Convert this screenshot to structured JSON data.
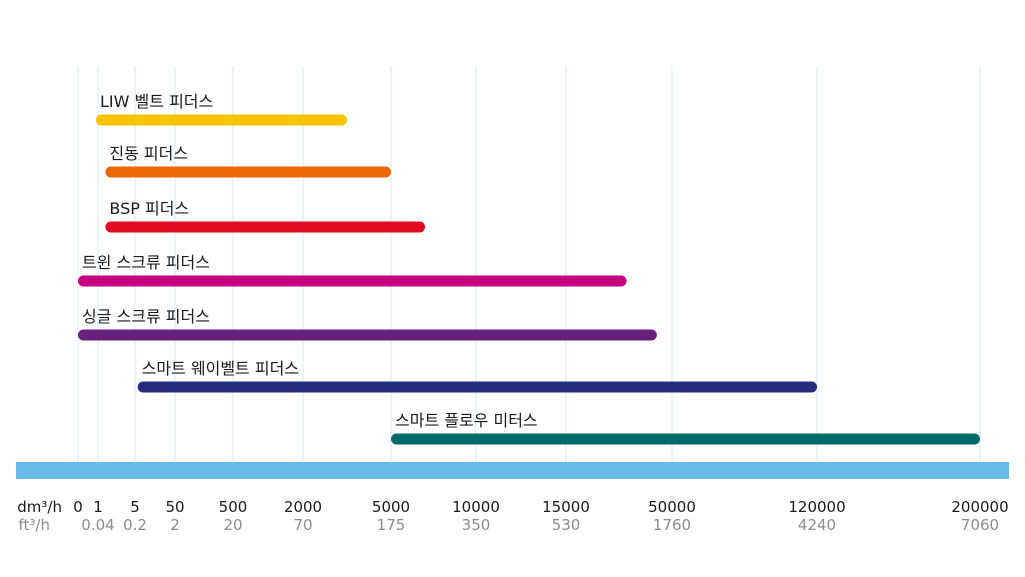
{
  "chart_data": {
    "type": "bar",
    "orientation": "horizontal-range",
    "title": "",
    "grid": true,
    "axis": {
      "scale": "categorical-nonlinear",
      "primary_unit": "dm³/h",
      "secondary_unit": "ft³/h",
      "ticks": [
        {
          "primary": "0",
          "secondary": "",
          "value": 0
        },
        {
          "primary": "1",
          "secondary": "0.04",
          "value": 1
        },
        {
          "primary": "5",
          "secondary": "0.2",
          "value": 5
        },
        {
          "primary": "50",
          "secondary": "2",
          "value": 50
        },
        {
          "primary": "500",
          "secondary": "20",
          "value": 500
        },
        {
          "primary": "2000",
          "secondary": "70",
          "value": 2000
        },
        {
          "primary": "5000",
          "secondary": "175",
          "value": 5000
        },
        {
          "primary": "10000",
          "secondary": "350",
          "value": 10000
        },
        {
          "primary": "15000",
          "secondary": "530",
          "value": 15000
        },
        {
          "primary": "50000",
          "secondary": "1760",
          "value": 50000
        },
        {
          "primary": "120000",
          "secondary": "4240",
          "value": 120000
        },
        {
          "primary": "200000",
          "secondary": "7060",
          "value": 200000
        }
      ]
    },
    "series": [
      {
        "name": "LIW 벨트 피더스",
        "start": 0.9,
        "end": 3500,
        "color": "#f8c300"
      },
      {
        "name": "진동 피더스",
        "start": 1.8,
        "end": 5000,
        "color": "#ec6608"
      },
      {
        "name": "BSP 피더스",
        "start": 1.8,
        "end": 7000,
        "color": "#e30b22"
      },
      {
        "name": "트윈 스크류 피더스",
        "start": 0,
        "end": 35000,
        "color": "#c6007e"
      },
      {
        "name": "싱글 스크류 피더스",
        "start": 0,
        "end": 45000,
        "color": "#68217a"
      },
      {
        "name": "스마트 웨이벨트 피더스",
        "start": 8,
        "end": 120000,
        "color": "#252c7d"
      },
      {
        "name": "스마트 플로우 미터스",
        "start": 5000,
        "end": 200000,
        "color": "#006a6a"
      }
    ],
    "colors": {
      "axis_band": "#68bbe8",
      "grid": "#d6e9f6"
    }
  }
}
